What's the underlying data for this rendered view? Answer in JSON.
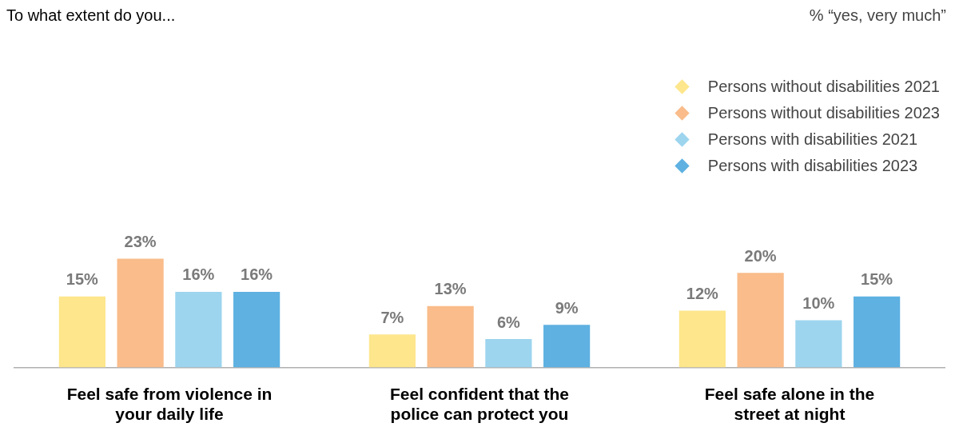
{
  "chart_data": {
    "type": "bar",
    "title": "To what extent do you...",
    "subtitle": "% “yes, very much”",
    "categories": [
      "Feel safe from violence in your daily life",
      "Feel confident that the police can protect you",
      "Feel safe alone in the street at night"
    ],
    "series": [
      {
        "name": "Persons without disabilities 2021",
        "color": "#fde68c",
        "values": [
          15,
          7,
          12
        ],
        "value_labels": [
          "15%",
          "7%",
          "12%"
        ]
      },
      {
        "name": "Persons without disabilities 2023",
        "color": "#f9bc8a",
        "values": [
          23,
          13,
          20
        ],
        "value_labels": [
          "23%",
          "13%",
          "20%"
        ]
      },
      {
        "name": "Persons with disabilities 2021",
        "color": "#9dd4ee",
        "values": [
          16,
          6,
          10
        ],
        "value_labels": [
          "16%",
          "6%",
          "10%"
        ]
      },
      {
        "name": "Persons with disabilities 2023",
        "color": "#5eb1e1",
        "values": [
          16,
          9,
          15
        ],
        "value_labels": [
          "16%",
          "9%",
          "15%"
        ]
      }
    ],
    "tick_labels": "x",
    "grid": false,
    "legend": "top right",
    "marker": "diamond"
  }
}
